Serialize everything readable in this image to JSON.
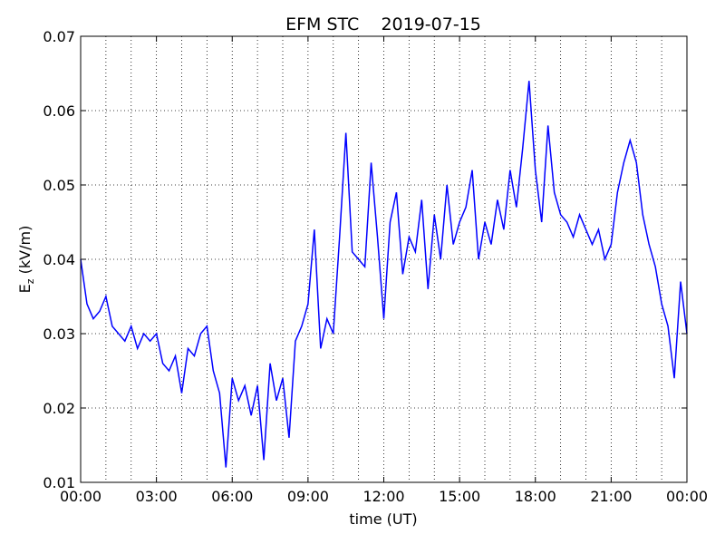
{
  "chart_data": {
    "type": "line",
    "title": "EFM STC    2019-07-15",
    "xlabel": "time (UT)",
    "ylabel": {
      "main": "E",
      "sub": "z",
      "rest": " (kV/m)"
    },
    "x": [
      0,
      0.25,
      0.5,
      0.75,
      1,
      1.25,
      1.5,
      1.75,
      2,
      2.25,
      2.5,
      2.75,
      3,
      3.25,
      3.5,
      3.75,
      4,
      4.25,
      4.5,
      4.75,
      5,
      5.25,
      5.5,
      5.75,
      6,
      6.25,
      6.5,
      6.75,
      7,
      7.25,
      7.5,
      7.75,
      8,
      8.25,
      8.5,
      8.75,
      9,
      9.25,
      9.5,
      9.75,
      10,
      10.25,
      10.5,
      10.75,
      11,
      11.25,
      11.5,
      11.75,
      12,
      12.25,
      12.5,
      12.75,
      13,
      13.25,
      13.5,
      13.75,
      14,
      14.25,
      14.5,
      14.75,
      15,
      15.25,
      15.5,
      15.75,
      16,
      16.25,
      16.5,
      16.75,
      17,
      17.25,
      17.5,
      17.75,
      18,
      18.25,
      18.5,
      18.75,
      19,
      19.25,
      19.5,
      19.75,
      20,
      20.25,
      20.5,
      20.75,
      21,
      21.25,
      21.5,
      21.75,
      22,
      22.25,
      22.5,
      22.75,
      23,
      23.25,
      23.5,
      23.75,
      24
    ],
    "series": [
      {
        "name": "Ez",
        "color": "#0000ff",
        "values": [
          0.04,
          0.034,
          0.032,
          0.033,
          0.035,
          0.031,
          0.03,
          0.029,
          0.031,
          0.028,
          0.03,
          0.029,
          0.03,
          0.026,
          0.025,
          0.027,
          0.022,
          0.028,
          0.027,
          0.03,
          0.031,
          0.025,
          0.022,
          0.012,
          0.024,
          0.021,
          0.023,
          0.019,
          0.023,
          0.013,
          0.026,
          0.021,
          0.024,
          0.016,
          0.029,
          0.031,
          0.034,
          0.044,
          0.028,
          0.032,
          0.03,
          0.043,
          0.057,
          0.041,
          0.04,
          0.039,
          0.053,
          0.043,
          0.032,
          0.045,
          0.049,
          0.038,
          0.043,
          0.041,
          0.048,
          0.036,
          0.046,
          0.04,
          0.05,
          0.042,
          0.045,
          0.047,
          0.052,
          0.04,
          0.045,
          0.042,
          0.048,
          0.044,
          0.052,
          0.047,
          0.055,
          0.064,
          0.052,
          0.045,
          0.058,
          0.049,
          0.046,
          0.045,
          0.043,
          0.046,
          0.044,
          0.042,
          0.044,
          0.04,
          0.042,
          0.049,
          0.053,
          0.056,
          0.053,
          0.046,
          0.042,
          0.039,
          0.034,
          0.031,
          0.024,
          0.037,
          0.03
        ]
      }
    ],
    "xlim": [
      0,
      24
    ],
    "xticks": [
      {
        "value": 0,
        "label": "00:00"
      },
      {
        "value": 3,
        "label": "03:00"
      },
      {
        "value": 6,
        "label": "06:00"
      },
      {
        "value": 9,
        "label": "09:00"
      },
      {
        "value": 12,
        "label": "12:00"
      },
      {
        "value": 15,
        "label": "15:00"
      },
      {
        "value": 18,
        "label": "18:00"
      },
      {
        "value": 21,
        "label": "21:00"
      },
      {
        "value": 24,
        "label": "00:00"
      }
    ],
    "x_grid_lines": [
      1,
      2,
      3,
      4,
      5,
      6,
      7,
      8,
      9,
      10,
      11,
      12,
      13,
      14,
      15,
      16,
      17,
      18,
      19,
      20,
      21,
      22,
      23
    ],
    "ylim": [
      0.01,
      0.07
    ],
    "yticks": [
      0.01,
      0.02,
      0.03,
      0.04,
      0.05,
      0.06,
      0.07
    ],
    "grid": true
  }
}
